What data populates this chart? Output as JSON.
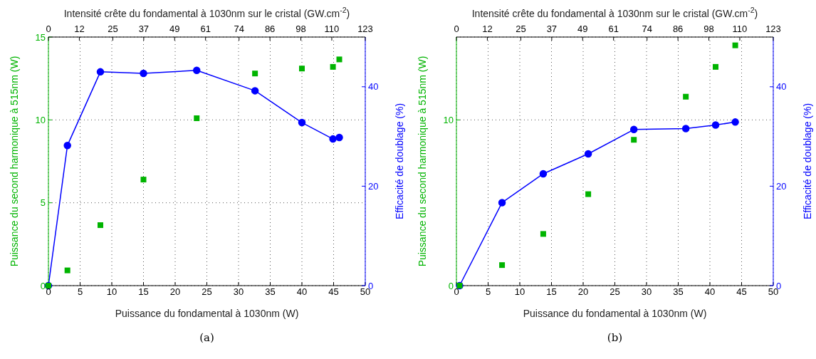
{
  "chart_data": [
    {
      "type": "scatter",
      "xlabel": "Puissance du fondamental à 1030nm (W)",
      "ylabel": "Puissance du second harmonique à 515nm (W)",
      "y2label": "Efficacité de doublage (%)",
      "x2label": "Intensité crête du fondamental à 1030nm sur le cristal (GW.cm$^{-2}$)",
      "x": [
        0,
        3.0,
        8.2,
        15,
        23.4,
        32.6,
        40,
        44.9,
        45.9
      ],
      "series": [
        {
          "type": "scatter",
          "marker": "square",
          "color": "#00b400",
          "values": [
            0,
            0.92,
            3.65,
            6.4,
            10.1,
            12.8,
            13.1,
            13.2,
            13.65
          ]
        },
        {
          "type": "line",
          "marker": "circle",
          "line_style": "solid",
          "axis": "y2",
          "color": "#0000ff",
          "values": [
            0,
            28.2,
            43.0,
            42.7,
            43.3,
            39.2,
            32.8,
            29.5,
            29.8
          ]
        }
      ],
      "xlim": [
        0,
        50
      ],
      "xticks": [
        0,
        5,
        10,
        15,
        20,
        25,
        30,
        35,
        40,
        45,
        50
      ],
      "ylim": [
        0,
        15
      ],
      "yticks": [
        0,
        5,
        10,
        15
      ],
      "y2lim": [
        0,
        50
      ],
      "y2ticks": [
        0,
        20,
        40
      ],
      "x2lim": [
        0,
        123
      ],
      "x2ticks": [
        0,
        12,
        25,
        37,
        49,
        61,
        74,
        86,
        98,
        110,
        123
      ],
      "grid": true,
      "legend": false,
      "annotations": [
        "(a)"
      ]
    },
    {
      "type": "scatter",
      "xlabel": "Puissance du fondamental à 1030nm (W)",
      "ylabel": "Puissance du second harmonique à 515nm (W)",
      "y2label": "Efficacité de doublage (%)",
      "x2label": "Intensité crête du fondamental à 1030nm sur le cristal (GW.cm$^{-2}$)",
      "x": [
        0.5,
        7.2,
        13.7,
        20.8,
        28,
        36.2,
        40.9,
        44
      ],
      "series": [
        {
          "type": "scatter",
          "marker": "square",
          "color": "#00b400",
          "values": [
            0,
            1.24,
            3.12,
            5.52,
            8.8,
            11.4,
            13.2,
            14.5
          ]
        },
        {
          "type": "line",
          "marker": "circle",
          "line_style": "solid",
          "axis": "y2",
          "color": "#0000ff",
          "values": [
            0,
            16.7,
            22.5,
            26.5,
            31.4,
            31.6,
            32.3,
            32.9
          ]
        }
      ],
      "xlim": [
        0,
        50
      ],
      "xticks": [
        0,
        5,
        10,
        15,
        20,
        25,
        30,
        35,
        40,
        45,
        50
      ],
      "ylim": [
        0,
        15
      ],
      "yticks": [
        0,
        10
      ],
      "y2lim": [
        0,
        50
      ],
      "y2ticks": [
        0,
        20,
        40
      ],
      "x2lim": [
        0,
        123
      ],
      "x2ticks": [
        0,
        12,
        25,
        37,
        49,
        61,
        74,
        86,
        98,
        110,
        123
      ],
      "grid": true,
      "legend": false,
      "annotations": [
        "(b)"
      ]
    }
  ]
}
